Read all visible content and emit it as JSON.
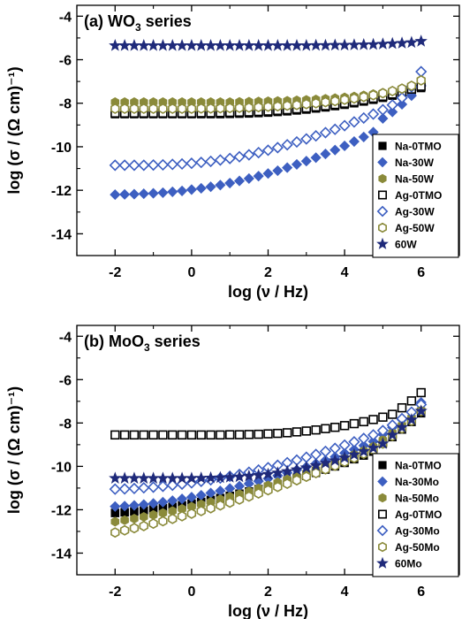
{
  "symbol_styles": {
    "Na-0TMO": {
      "shape": "square",
      "fill": "#000000",
      "stroke": "#000000",
      "filled": true
    },
    "Na-30W": {
      "shape": "diamond",
      "fill": "#3d5fc1",
      "stroke": "#3d5fc1",
      "filled": true
    },
    "Na-50W": {
      "shape": "hexagon",
      "fill": "#8a8a3a",
      "stroke": "#8a8a3a",
      "filled": true
    },
    "Ag-0TMO": {
      "shape": "square",
      "fill": "#ffffff",
      "stroke": "#000000",
      "filled": false
    },
    "Ag-30W": {
      "shape": "diamond",
      "fill": "#ffffff",
      "stroke": "#3d5fc1",
      "filled": false
    },
    "Ag-50W": {
      "shape": "hexagon",
      "fill": "#ffffff",
      "stroke": "#8a8a3a",
      "filled": false
    },
    "60W": {
      "shape": "star",
      "fill": "#1f2a7a",
      "stroke": "#1f2a7a",
      "filled": true
    },
    "Na-30Mo": {
      "shape": "diamond",
      "fill": "#3d5fc1",
      "stroke": "#3d5fc1",
      "filled": true
    },
    "Na-50Mo": {
      "shape": "hexagon",
      "fill": "#8a8a3a",
      "stroke": "#8a8a3a",
      "filled": true
    },
    "Ag-30Mo": {
      "shape": "diamond",
      "fill": "#ffffff",
      "stroke": "#3d5fc1",
      "filled": false
    },
    "Ag-50Mo": {
      "shape": "hexagon",
      "fill": "#ffffff",
      "stroke": "#8a8a3a",
      "filled": false
    },
    "60Mo": {
      "shape": "star",
      "fill": "#1f2a7a",
      "stroke": "#1f2a7a",
      "filled": true
    }
  },
  "chart_data": [
    {
      "type": "scatter",
      "title_prefix": "(a) WO",
      "title_sub": "3",
      "title_suffix": " series",
      "ylabel": "log (σ / (Ω cm)⁻¹)",
      "xlabel": "log (ν / Hz)",
      "xlim": [
        -3,
        7
      ],
      "ylim": [
        -15,
        -3.5
      ],
      "xticks": [
        -2,
        0,
        2,
        4,
        6
      ],
      "yticks": [
        -14,
        -12,
        -10,
        -8,
        -6,
        -4
      ],
      "legend_position": "bottom-right",
      "x_start": -2,
      "x_end": 6,
      "x_step": 0.25,
      "series": [
        {
          "name": "Na-0TMO",
          "y": [
            -8.5,
            -8.5,
            -8.5,
            -8.5,
            -8.5,
            -8.5,
            -8.5,
            -8.5,
            -8.5,
            -8.5,
            -8.5,
            -8.5,
            -8.49,
            -8.48,
            -8.47,
            -8.45,
            -8.43,
            -8.4,
            -8.37,
            -8.33,
            -8.29,
            -8.24,
            -8.19,
            -8.13,
            -8.07,
            -8.0,
            -7.92,
            -7.84,
            -7.75,
            -7.65,
            -7.54,
            -7.43,
            -7.3
          ]
        },
        {
          "name": "Na-30W",
          "y": [
            -12.2,
            -12.19,
            -12.18,
            -12.16,
            -12.14,
            -12.11,
            -12.07,
            -12.03,
            -11.97,
            -11.91,
            -11.84,
            -11.76,
            -11.67,
            -11.57,
            -11.46,
            -11.35,
            -11.23,
            -11.1,
            -10.96,
            -10.81,
            -10.66,
            -10.5,
            -10.33,
            -10.15,
            -9.96,
            -9.76,
            -9.55,
            -9.33,
            -8.7,
            -8.4,
            -8.05,
            -7.65,
            -7.2
          ]
        },
        {
          "name": "Na-50W",
          "y": [
            -7.95,
            -7.95,
            -7.95,
            -7.95,
            -7.95,
            -7.95,
            -7.95,
            -7.95,
            -7.95,
            -7.95,
            -7.95,
            -7.95,
            -7.95,
            -7.94,
            -7.93,
            -7.92,
            -7.91,
            -7.9,
            -7.89,
            -7.87,
            -7.85,
            -7.83,
            -7.8,
            -7.77,
            -7.73,
            -7.69,
            -7.64,
            -7.58,
            -7.52,
            -7.45,
            -7.37,
            -7.28,
            -7.18
          ]
        },
        {
          "name": "Ag-0TMO",
          "y": [
            -8.45,
            -8.45,
            -8.45,
            -8.45,
            -8.45,
            -8.45,
            -8.45,
            -8.45,
            -8.45,
            -8.44,
            -8.44,
            -8.43,
            -8.42,
            -8.41,
            -8.4,
            -8.38,
            -8.36,
            -8.33,
            -8.3,
            -8.26,
            -8.22,
            -8.17,
            -8.12,
            -8.06,
            -8.0,
            -7.93,
            -7.85,
            -7.77,
            -7.68,
            -7.58,
            -7.47,
            -7.35,
            -7.22
          ]
        },
        {
          "name": "Ag-30W",
          "y": [
            -10.85,
            -10.85,
            -10.85,
            -10.85,
            -10.84,
            -10.83,
            -10.81,
            -10.79,
            -10.76,
            -10.72,
            -10.67,
            -10.61,
            -10.54,
            -10.46,
            -10.37,
            -10.27,
            -10.16,
            -10.04,
            -9.91,
            -9.78,
            -9.64,
            -9.5,
            -9.35,
            -9.2,
            -9.03,
            -8.86,
            -8.68,
            -8.5,
            -8.3,
            -8.08,
            -7.75,
            -7.25,
            -6.55
          ]
        },
        {
          "name": "Ag-50W",
          "y": [
            -8.25,
            -8.25,
            -8.25,
            -8.25,
            -8.25,
            -8.25,
            -8.25,
            -8.25,
            -8.25,
            -8.24,
            -8.24,
            -8.23,
            -8.22,
            -8.21,
            -8.2,
            -8.18,
            -8.16,
            -8.14,
            -8.11,
            -8.08,
            -8.04,
            -8.0,
            -7.95,
            -7.9,
            -7.84,
            -7.78,
            -7.71,
            -7.63,
            -7.54,
            -7.44,
            -7.33,
            -7.2,
            -6.95
          ]
        },
        {
          "name": "60W",
          "y": [
            -5.35,
            -5.35,
            -5.35,
            -5.35,
            -5.35,
            -5.35,
            -5.35,
            -5.35,
            -5.35,
            -5.35,
            -5.35,
            -5.35,
            -5.35,
            -5.35,
            -5.35,
            -5.35,
            -5.35,
            -5.35,
            -5.35,
            -5.35,
            -5.35,
            -5.34,
            -5.34,
            -5.33,
            -5.33,
            -5.32,
            -5.31,
            -5.3,
            -5.28,
            -5.26,
            -5.24,
            -5.21,
            -5.15
          ]
        }
      ]
    },
    {
      "type": "scatter",
      "title_prefix": "(b) MoO",
      "title_sub": "3",
      "title_suffix": " series",
      "ylabel": "log (σ / (Ω cm)⁻¹)",
      "xlabel": "log (ν / Hz)",
      "xlim": [
        -3,
        7
      ],
      "ylim": [
        -15,
        -3.5
      ],
      "xticks": [
        -2,
        0,
        2,
        4,
        6
      ],
      "yticks": [
        -14,
        -12,
        -10,
        -8,
        -6,
        -4
      ],
      "legend_position": "bottom-right",
      "x_start": -2,
      "x_end": 6,
      "x_step": 0.25,
      "series": [
        {
          "name": "Na-0TMO",
          "y": [
            -12.15,
            -12.12,
            -12.08,
            -12.04,
            -11.99,
            -11.93,
            -11.87,
            -11.8,
            -11.72,
            -11.64,
            -11.55,
            -11.46,
            -11.36,
            -11.26,
            -11.16,
            -11.05,
            -10.94,
            -10.82,
            -10.7,
            -10.57,
            -10.44,
            -10.3,
            -10.15,
            -10.0,
            -9.84,
            -9.67,
            -9.5,
            -9.32,
            -8.95,
            -8.65,
            -8.3,
            -7.95,
            -7.55
          ]
        },
        {
          "name": "Na-30Mo",
          "y": [
            -11.85,
            -11.83,
            -11.8,
            -11.76,
            -11.71,
            -11.65,
            -11.58,
            -11.5,
            -11.42,
            -11.33,
            -11.23,
            -11.13,
            -11.02,
            -10.91,
            -10.8,
            -10.68,
            -10.56,
            -10.43,
            -10.3,
            -10.16,
            -10.02,
            -9.87,
            -9.72,
            -9.56,
            -9.39,
            -9.22,
            -9.04,
            -8.85,
            -8.52,
            -8.2,
            -7.85,
            -7.5,
            -7.05
          ]
        },
        {
          "name": "Na-50Mo",
          "y": [
            -12.55,
            -12.48,
            -12.41,
            -12.33,
            -12.24,
            -12.15,
            -12.06,
            -11.96,
            -11.86,
            -11.75,
            -11.64,
            -11.52,
            -11.4,
            -11.28,
            -11.15,
            -11.02,
            -10.88,
            -10.74,
            -10.6,
            -10.45,
            -10.3,
            -10.14,
            -9.98,
            -9.81,
            -9.64,
            -9.46,
            -9.28,
            -9.09,
            -8.78,
            -8.45,
            -8.1,
            -7.75,
            -7.4
          ]
        },
        {
          "name": "Ag-0TMO",
          "y": [
            -8.55,
            -8.55,
            -8.55,
            -8.55,
            -8.55,
            -8.55,
            -8.55,
            -8.55,
            -8.55,
            -8.55,
            -8.55,
            -8.55,
            -8.54,
            -8.54,
            -8.53,
            -8.52,
            -8.5,
            -8.48,
            -8.45,
            -8.41,
            -8.37,
            -8.32,
            -8.26,
            -8.2,
            -8.12,
            -8.03,
            -7.94,
            -7.84,
            -7.73,
            -7.6,
            -7.3,
            -6.98,
            -6.6
          ]
        },
        {
          "name": "Ag-30Mo",
          "y": [
            -11.05,
            -11.04,
            -11.02,
            -10.99,
            -10.96,
            -10.92,
            -10.87,
            -10.82,
            -10.76,
            -10.69,
            -10.62,
            -10.54,
            -10.46,
            -10.37,
            -10.27,
            -10.17,
            -10.06,
            -9.95,
            -9.83,
            -9.71,
            -9.58,
            -9.45,
            -9.31,
            -9.17,
            -9.02,
            -8.87,
            -8.71,
            -8.55,
            -8.35,
            -8.1,
            -7.8,
            -7.5,
            -7.15
          ]
        },
        {
          "name": "Ag-50Mo",
          "y": [
            -13.05,
            -12.95,
            -12.85,
            -12.75,
            -12.64,
            -12.53,
            -12.42,
            -12.3,
            -12.18,
            -12.06,
            -11.93,
            -11.8,
            -11.67,
            -11.53,
            -11.39,
            -11.25,
            -11.1,
            -10.95,
            -10.8,
            -10.64,
            -10.48,
            -10.31,
            -10.14,
            -9.97,
            -9.79,
            -9.61,
            -9.42,
            -9.23,
            -8.95,
            -8.6,
            -8.25,
            -7.9,
            -7.45
          ]
        },
        {
          "name": "60Mo",
          "y": [
            -10.55,
            -10.55,
            -10.55,
            -10.55,
            -10.55,
            -10.55,
            -10.55,
            -10.55,
            -10.55,
            -10.54,
            -10.53,
            -10.52,
            -10.5,
            -10.48,
            -10.45,
            -10.41,
            -10.36,
            -10.3,
            -10.23,
            -10.15,
            -10.06,
            -9.96,
            -9.85,
            -9.73,
            -9.6,
            -9.46,
            -9.31,
            -9.15,
            -8.95,
            -8.55,
            -8.2,
            -7.85,
            -7.45
          ]
        }
      ]
    }
  ]
}
